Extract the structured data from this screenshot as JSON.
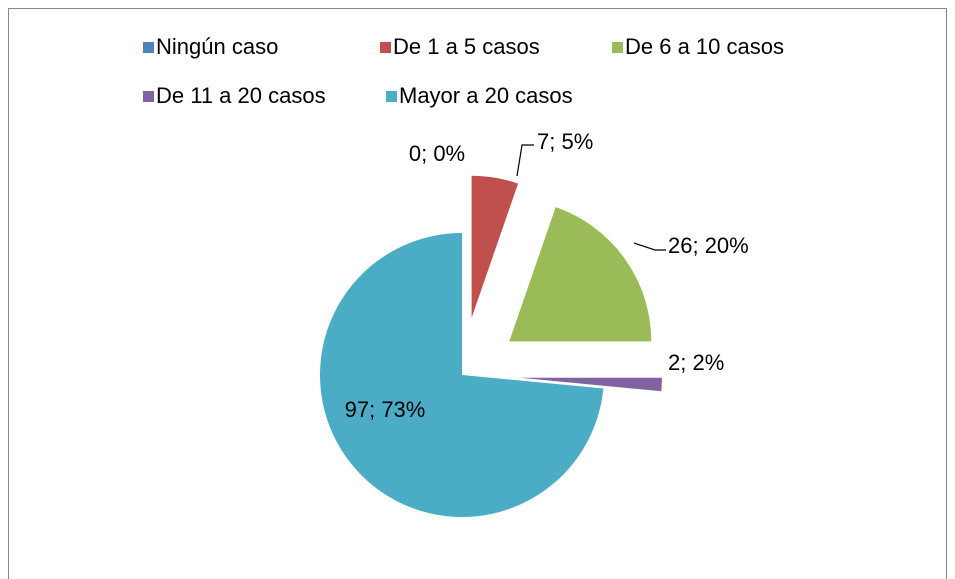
{
  "chart_data": {
    "type": "pie",
    "categories": [
      "Ningún caso",
      "De 1 a 5 casos",
      "De 6 a 10 casos",
      "De 11 a 20 casos",
      "Mayor a 20 casos"
    ],
    "values": [
      0,
      7,
      26,
      2,
      97
    ],
    "value_labels": [
      "0; 0%",
      "7; 5%",
      "26; 20%",
      "2; 2%",
      "97; 73%"
    ],
    "colors": [
      "#4f81bd",
      "#c0504d",
      "#9bbb59",
      "#8064a2",
      "#4bacc6"
    ],
    "legend": "top"
  }
}
